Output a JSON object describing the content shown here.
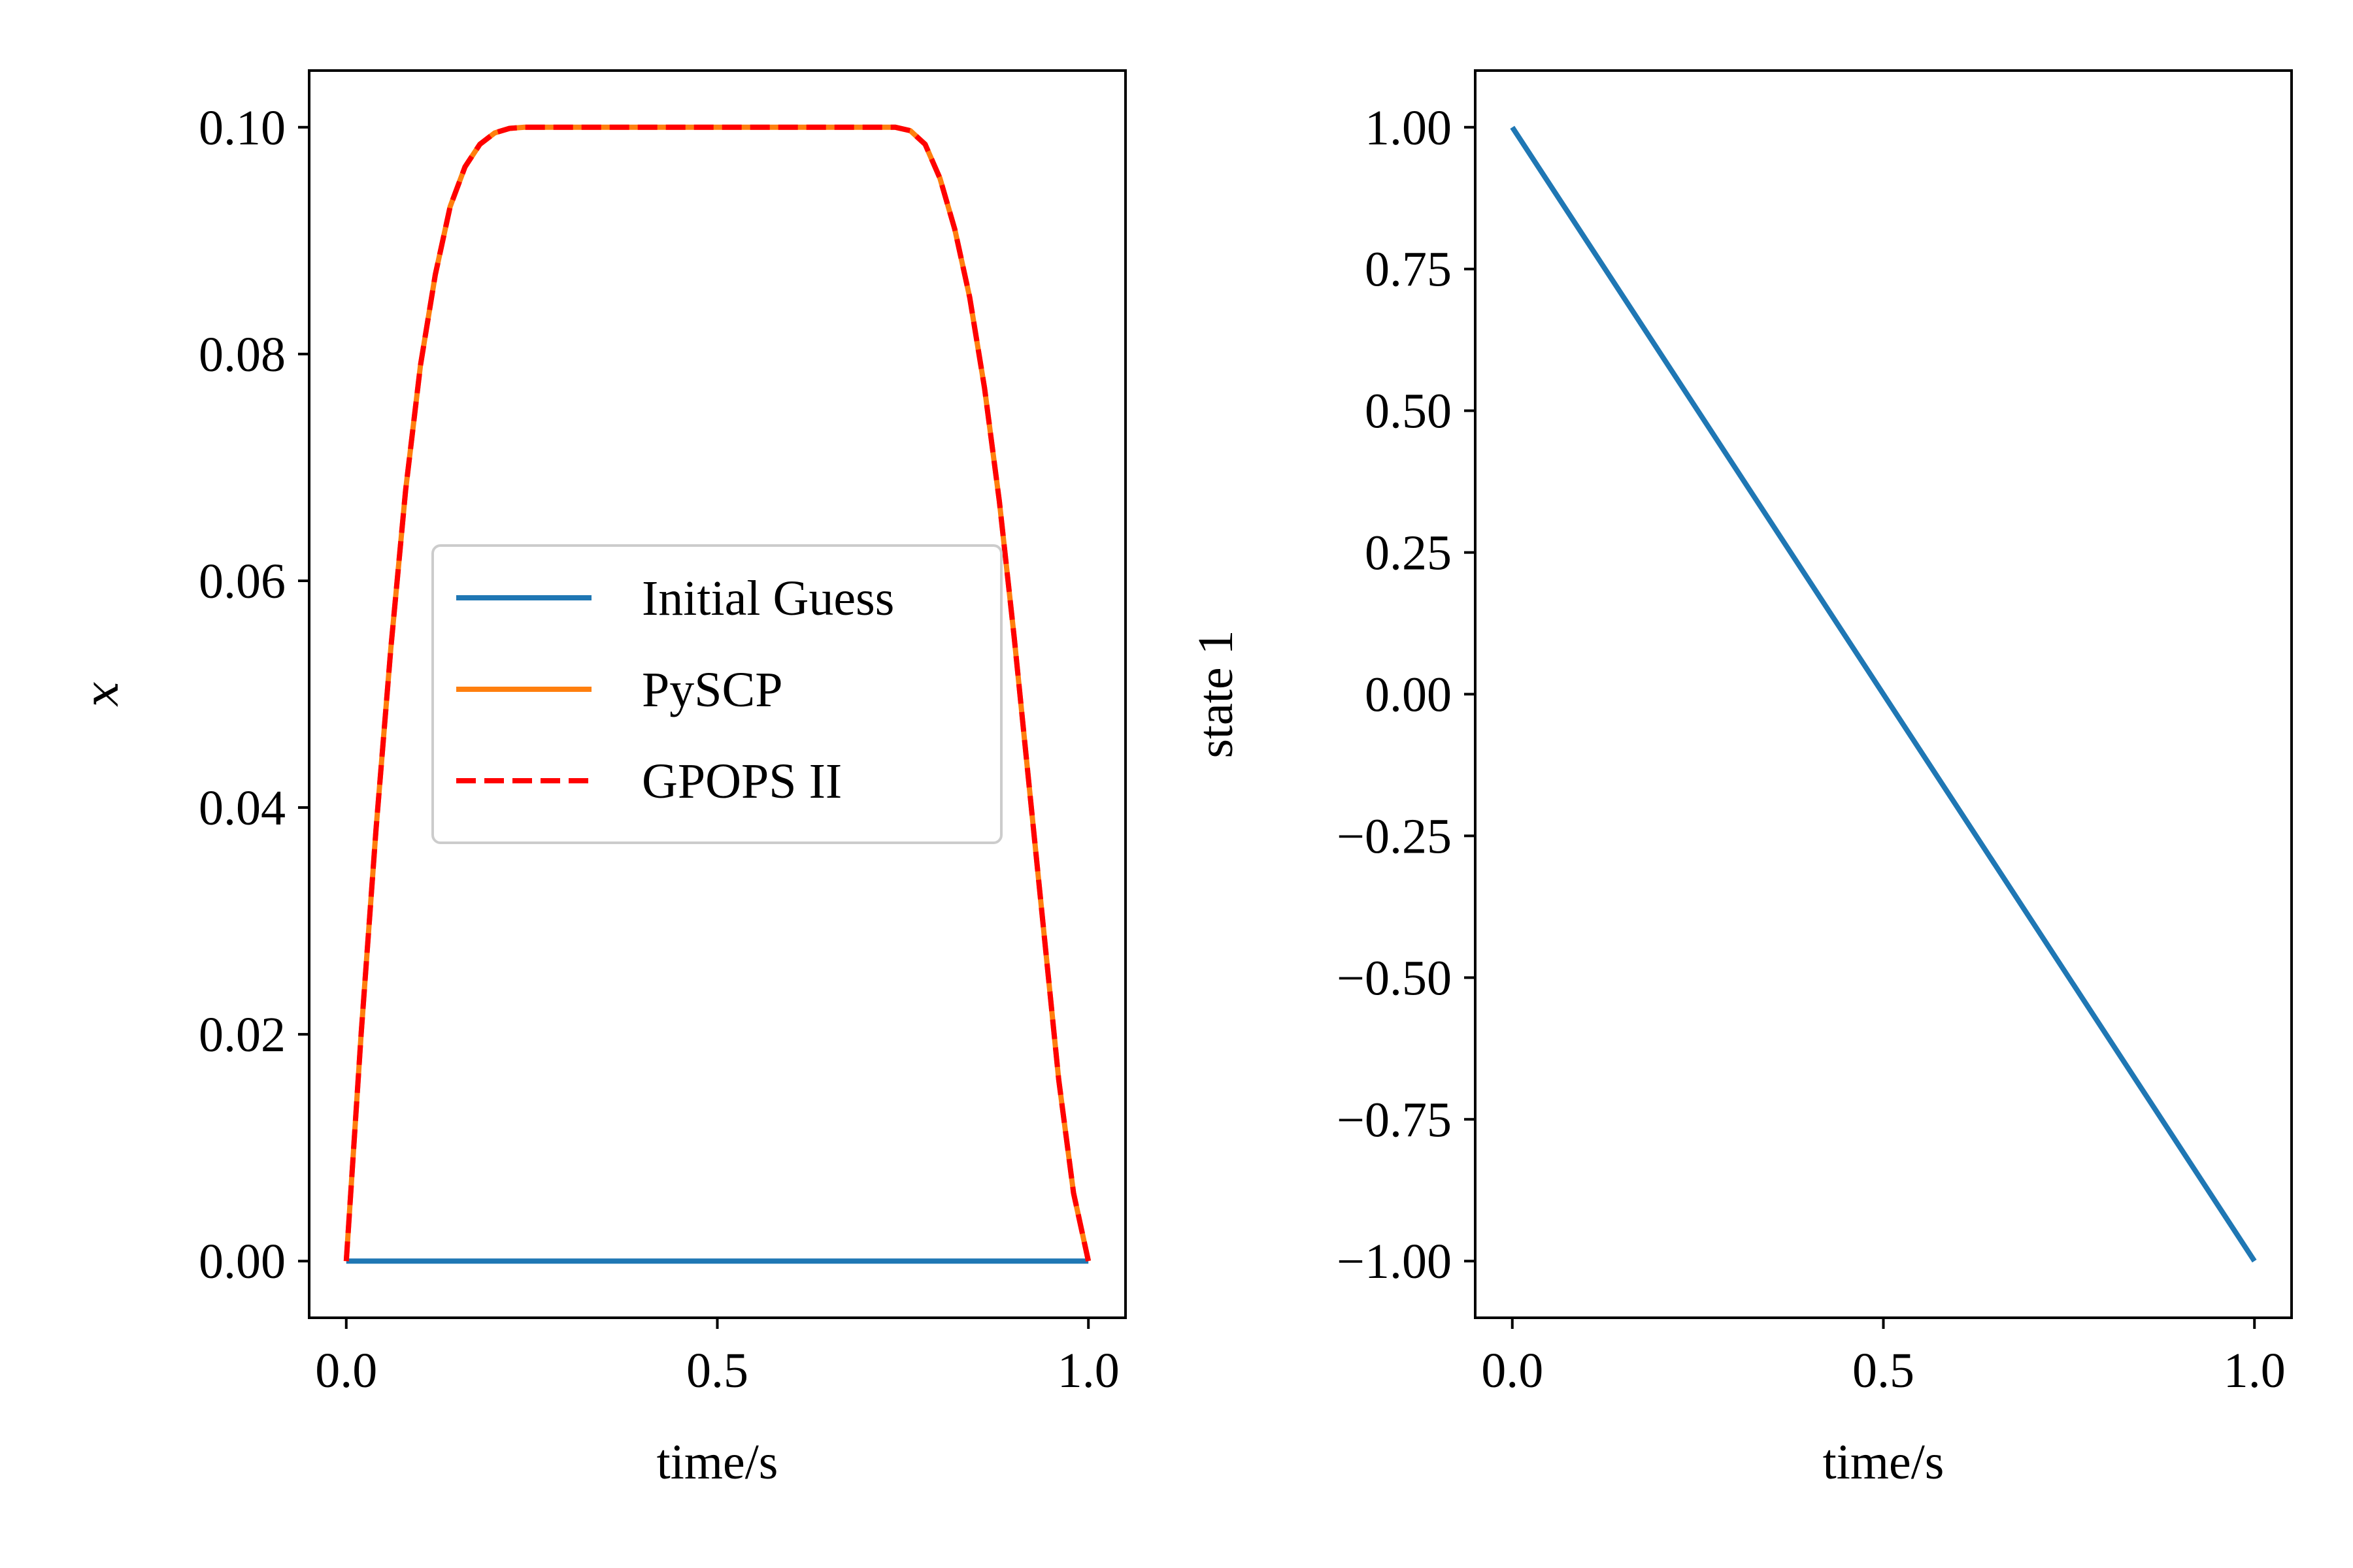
{
  "chart_data": [
    {
      "type": "line",
      "xlabel": "time/s",
      "ylabel": "x",
      "xlim": [
        -0.05,
        1.05
      ],
      "ylim": [
        -0.005,
        0.105
      ],
      "xticks": [
        0.0,
        0.5,
        1.0
      ],
      "xtick_labels": [
        "0.0",
        "0.5",
        "1.0"
      ],
      "yticks": [
        0.0,
        0.02,
        0.04,
        0.06,
        0.08,
        0.1
      ],
      "ytick_labels": [
        "0.00",
        "0.02",
        "0.04",
        "0.06",
        "0.08",
        "0.10"
      ],
      "grid": false,
      "legend_position": "center",
      "series": [
        {
          "name": "Initial Guess",
          "color": "#1f77b4",
          "style": "solid",
          "x": [
            0.0,
            1.0
          ],
          "y": [
            0.0,
            0.0
          ]
        },
        {
          "name": "PySCP",
          "color": "#ff7f0e",
          "style": "solid",
          "x": [
            0.0,
            0.02,
            0.04,
            0.06,
            0.08,
            0.1,
            0.12,
            0.14,
            0.16,
            0.18,
            0.2,
            0.22,
            0.24,
            0.26,
            0.28,
            0.3,
            0.4,
            0.5,
            0.6,
            0.7,
            0.72,
            0.74,
            0.76,
            0.78,
            0.8,
            0.82,
            0.84,
            0.86,
            0.88,
            0.9,
            0.92,
            0.94,
            0.96,
            0.98,
            1.0
          ],
          "y": [
            0.0,
            0.02,
            0.038,
            0.054,
            0.068,
            0.079,
            0.087,
            0.093,
            0.0965,
            0.0985,
            0.0995,
            0.0999,
            0.1,
            0.1,
            0.1,
            0.1,
            0.1,
            0.1,
            0.1,
            0.1,
            0.1,
            0.1,
            0.0997,
            0.0985,
            0.0955,
            0.091,
            0.085,
            0.077,
            0.067,
            0.055,
            0.042,
            0.029,
            0.016,
            0.006,
            0.0
          ]
        },
        {
          "name": "GPOPS II",
          "color": "#ff0000",
          "style": "dashed",
          "x": [
            0.0,
            0.02,
            0.04,
            0.06,
            0.08,
            0.1,
            0.12,
            0.14,
            0.16,
            0.18,
            0.2,
            0.22,
            0.24,
            0.26,
            0.28,
            0.3,
            0.4,
            0.5,
            0.6,
            0.7,
            0.72,
            0.74,
            0.76,
            0.78,
            0.8,
            0.82,
            0.84,
            0.86,
            0.88,
            0.9,
            0.92,
            0.94,
            0.96,
            0.98,
            1.0
          ],
          "y": [
            0.0,
            0.02,
            0.038,
            0.054,
            0.068,
            0.079,
            0.087,
            0.093,
            0.0965,
            0.0985,
            0.0995,
            0.0999,
            0.1,
            0.1,
            0.1,
            0.1,
            0.1,
            0.1,
            0.1,
            0.1,
            0.1,
            0.1,
            0.0997,
            0.0985,
            0.0955,
            0.091,
            0.085,
            0.077,
            0.067,
            0.055,
            0.042,
            0.029,
            0.016,
            0.006,
            0.0
          ]
        }
      ]
    },
    {
      "type": "line",
      "xlabel": "time/s",
      "ylabel": "state 1",
      "xlim": [
        -0.05,
        1.05
      ],
      "ylim": [
        -1.1,
        1.1
      ],
      "xticks": [
        0.0,
        0.5,
        1.0
      ],
      "xtick_labels": [
        "0.0",
        "0.5",
        "1.0"
      ],
      "yticks": [
        -1.0,
        -0.75,
        -0.5,
        -0.25,
        0.0,
        0.25,
        0.5,
        0.75,
        1.0
      ],
      "ytick_labels": [
        "−1.00",
        "−0.75",
        "−0.50",
        "−0.25",
        "0.00",
        "0.25",
        "0.50",
        "0.75",
        "1.00"
      ],
      "grid": false,
      "series": [
        {
          "color": "#1f77b4",
          "style": "solid",
          "x": [
            0.0,
            1.0
          ],
          "y": [
            1.0,
            -1.0
          ]
        }
      ]
    }
  ]
}
